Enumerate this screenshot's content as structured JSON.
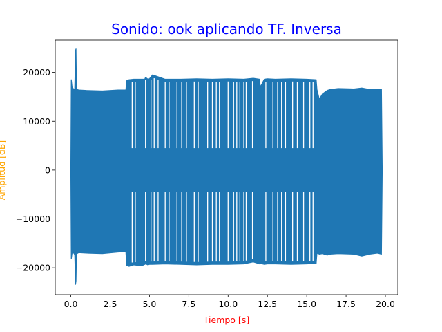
{
  "colors": {
    "title": "#0000ff",
    "xlabel": "#ff0000",
    "ylabel": "#ffa500",
    "series": "#1f77b4",
    "axes": "#000000",
    "background": "#ffffff"
  },
  "chart_data": {
    "type": "line",
    "title": "Sonido: ook aplicando TF. Inversa",
    "xlabel": "Tiempo [s]",
    "ylabel": "Amplitud [dB]",
    "xlim": [
      -0.99,
      20.79
    ],
    "ylim": [
      -25500,
      26600
    ],
    "grid": false,
    "legend": "none",
    "x_ticks": [
      0.0,
      2.5,
      5.0,
      7.5,
      10.0,
      12.5,
      15.0,
      17.5,
      20.0
    ],
    "x_tick_labels": [
      "0.0",
      "2.5",
      "5.0",
      "7.5",
      "10.0",
      "12.5",
      "15.0",
      "17.5",
      "20.0"
    ],
    "y_ticks": [
      -20000,
      -10000,
      0,
      10000,
      20000
    ],
    "y_tick_labels": [
      "−20000",
      "−10000",
      "0",
      "10000",
      "20000"
    ],
    "series": [
      {
        "color": "#1f77b4",
        "envelope": {
          "x": [
            0.0,
            0.03,
            0.08,
            0.2,
            0.25,
            0.3,
            0.33,
            0.36,
            0.4,
            0.5,
            1.0,
            2.0,
            3.0,
            3.5,
            3.55,
            3.7,
            4.0,
            4.5,
            4.7,
            4.75,
            4.9,
            5.0,
            5.2,
            6.0,
            7.0,
            8.0,
            9.0,
            10.0,
            11.0,
            11.6,
            12.0,
            12.05,
            12.3,
            12.5,
            13.0,
            14.0,
            15.0,
            15.6,
            15.65,
            15.8,
            16.0,
            16.3,
            16.5,
            17.0,
            18.0,
            18.5,
            19.0,
            19.5,
            19.75,
            19.8
          ],
          "upper": [
            0,
            18500,
            17000,
            16500,
            16700,
            24500,
            24800,
            16500,
            16500,
            16400,
            16300,
            16200,
            16400,
            16400,
            18300,
            18500,
            18600,
            18600,
            18600,
            19000,
            18600,
            18700,
            19500,
            18600,
            18600,
            18700,
            18600,
            18700,
            18600,
            18800,
            18600,
            17000,
            18600,
            18700,
            18600,
            18700,
            18600,
            18500,
            16500,
            14500,
            15600,
            16300,
            16500,
            16700,
            16600,
            16800,
            16500,
            16600,
            16600,
            0
          ],
          "lower": [
            0,
            -18200,
            -17000,
            -17000,
            -17400,
            -23400,
            -22700,
            -17300,
            -17100,
            -16900,
            -17000,
            -17100,
            -16800,
            -16700,
            -19500,
            -19700,
            -19400,
            -19600,
            -19300,
            -19200,
            -19400,
            -19300,
            -19300,
            -19200,
            -19300,
            -19400,
            -19300,
            -19300,
            -19200,
            -18800,
            -19200,
            -19100,
            -19300,
            -19200,
            -19200,
            -19300,
            -19200,
            -19100,
            -17000,
            -17200,
            -17100,
            -17400,
            -17200,
            -17100,
            -17200,
            -17600,
            -17200,
            -17000,
            -17200,
            0
          ]
        },
        "dropouts": [
          3.9,
          4.1,
          4.75,
          5.1,
          5.3,
          5.55,
          6.0,
          6.25,
          6.75,
          7.05,
          7.35,
          7.85,
          8.1,
          8.7,
          9.0,
          9.25,
          9.45,
          10.0,
          10.35,
          10.55,
          10.75,
          11.0,
          11.15,
          11.55,
          12.4,
          12.85,
          13.15,
          13.4,
          13.65,
          14.1,
          14.4,
          14.8,
          15.2,
          15.4
        ],
        "dropout_gap": [
          -4500,
          4500
        ]
      }
    ]
  }
}
